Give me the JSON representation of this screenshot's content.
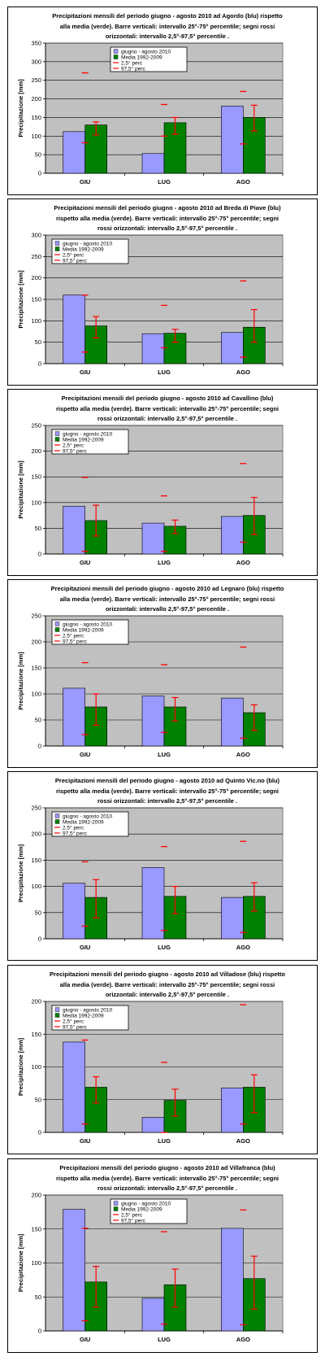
{
  "chart_data": [
    {
      "type": "bar",
      "title": "Precipitazioni mensili del periodo giugno - agosto 2010 ad Agordo (blu) rispetto alla media (verde). Barre verticali: intervallo 25°-75° percentile; segni rossi orizzontali: intervallo 2,5°-97,5° percentile .",
      "title_lines": [
        "Precipitazioni mensili del periodo giugno - agosto 2010 ad Agordo (blu) rispetto",
        "alla media (verde). Barre verticali: intervallo 25°-75° percentile; segni rossi",
        "orizzontali: intervallo 2,5°-97,5° percentile ."
      ],
      "ylabel": "Precipitazione [mm]",
      "ylim": [
        0,
        350
      ],
      "ytick_step": 50,
      "categories": [
        "GIU",
        "LUG",
        "AGO"
      ],
      "series": [
        {
          "name": "giugno - agosto 2010",
          "values": [
            112,
            53,
            181
          ],
          "color": "#9999ff"
        },
        {
          "name": "Media 1992-2009",
          "values": [
            130,
            136,
            150
          ],
          "color": "#008000"
        }
      ],
      "p25": [
        103,
        105,
        114
      ],
      "p75": [
        138,
        150,
        183
      ],
      "p2_5": [
        82,
        100,
        79
      ],
      "p97_5": [
        270,
        185,
        220
      ],
      "legend": [
        "giugno - agosto 2010",
        "Media 1992-2009",
        "2,5° perc",
        "97,5° perc"
      ],
      "legend_placement": "top-center"
    },
    {
      "type": "bar",
      "title": "Precipitazioni mensili del periodo giugno - agosto 2010 ad Breda di Piave (blu) rispetto alla media (verde). Barre verticali: intervallo 25°-75° percentile; segni rossi orizzontali: intervallo 2,5°-97,5° percentile .",
      "title_lines": [
        "Precipitazioni mensili del periodo giugno - agosto 2010 ad Breda di Piave (blu)",
        "rispetto alla media (verde). Barre verticali: intervallo 25°-75° percentile; segni",
        "rossi orizzontali: intervallo 2,5°-97,5° percentile ."
      ],
      "ylabel": "Precipitazione [mm]",
      "ylim": [
        0,
        300
      ],
      "ytick_step": 50,
      "categories": [
        "GIU",
        "LUG",
        "AGO"
      ],
      "series": [
        {
          "name": "giugno - agosto 2010",
          "values": [
            160,
            70,
            73
          ],
          "color": "#9999ff"
        },
        {
          "name": "Media 1992-2009",
          "values": [
            88,
            71,
            85
          ],
          "color": "#008000"
        }
      ],
      "p25": [
        60,
        50,
        50
      ],
      "p75": [
        110,
        80,
        126
      ],
      "p2_5": [
        27,
        37,
        15
      ],
      "p97_5": [
        160,
        136,
        193
      ],
      "legend": [
        "giugno - agosto 2010",
        "Media 1992-2009",
        "2,5° perc",
        "97,5° perc"
      ],
      "legend_placement": "top-left"
    },
    {
      "type": "bar",
      "title": "Precipitazioni mensili del periodo giugno - agosto 2010 ad Cavallino (blu) rispetto alla media (verde). Barre verticali: intervallo 25°-75° percentile; segni rossi orizzontali: intervallo 2,5°-97,5° percentile .",
      "title_lines": [
        "Precipitazioni mensili del periodo giugno - agosto 2010 ad Cavallino (blu)",
        "rispetto alla media (verde). Barre verticali: intervallo 25°-75° percentile; segni",
        "rossi orizzontali: intervallo 2,5°-97,5° percentile ."
      ],
      "ylabel": "Precipitazione [mm]",
      "ylim": [
        0,
        250
      ],
      "ytick_step": 50,
      "categories": [
        "GIU",
        "LUG",
        "AGO"
      ],
      "series": [
        {
          "name": "giugno - agosto 2010",
          "values": [
            93,
            60,
            73
          ],
          "color": "#9999ff"
        },
        {
          "name": "Media 1992-2009",
          "values": [
            65,
            54,
            75
          ],
          "color": "#008000"
        }
      ],
      "p25": [
        35,
        40,
        38
      ],
      "p75": [
        95,
        66,
        110
      ],
      "p2_5": [
        5,
        5,
        23
      ],
      "p97_5": [
        149,
        113,
        176
      ],
      "legend": [
        "giugno - agosto 2010",
        "Media 1992-2009",
        "2,5° perc",
        "97,5° perc"
      ],
      "legend_placement": "top-left"
    },
    {
      "type": "bar",
      "title": "Precipitazioni mensili del periodo giugno - agosto 2010 ad Legnaro (blu) rispetto alla media (verde). Barre verticali: intervallo 25°-75° percentile; segni rossi orizzontali: intervallo 2,5°-97,5° percentile .",
      "title_lines": [
        "Precipitazioni mensili del periodo giugno - agosto 2010 ad Legnaro (blu) rispetto",
        "alla media (verde). Barre verticali: intervallo 25°-75° percentile; segni rossi",
        "orizzontali: intervallo 2,5°-97,5° percentile ."
      ],
      "ylabel": "Precipitazione [mm]",
      "ylim": [
        0,
        250
      ],
      "ytick_step": 50,
      "categories": [
        "GIU",
        "LUG",
        "AGO"
      ],
      "series": [
        {
          "name": "giugno - agosto 2010",
          "values": [
            111,
            96,
            92
          ],
          "color": "#9999ff"
        },
        {
          "name": "Media 1992-2009",
          "values": [
            75,
            75,
            64
          ],
          "color": "#008000"
        }
      ],
      "p25": [
        40,
        48,
        30
      ],
      "p75": [
        100,
        93,
        79
      ],
      "p2_5": [
        22,
        26,
        15
      ],
      "p97_5": [
        160,
        156,
        190
      ],
      "legend": [
        "giugno - agosto 2010",
        "Media 1992-2009",
        "2,5° perc",
        "97,5° perc"
      ],
      "legend_placement": "top-left"
    },
    {
      "type": "bar",
      "title": "Precipitazioni mensili del periodo giugno - agosto 2010 ad Quinto Vic.no (blu) rispetto alla media (verde). Barre verticali: intervallo 25°-75° percentile; segni rossi orizzontali: intervallo 2,5°-97,5° percentile .",
      "title_lines": [
        "Precipitazioni mensili del periodo giugno - agosto 2010 ad Quinto Vic.no (blu)",
        "rispetto alla media (verde). Barre verticali: intervallo 25°-75° percentile; segni",
        "rossi orizzontali: intervallo 2,5°-97,5° percentile ."
      ],
      "ylabel": "Precipitazione [mm]",
      "ylim": [
        0,
        250
      ],
      "ytick_step": 50,
      "categories": [
        "GIU",
        "LUG",
        "AGO"
      ],
      "series": [
        {
          "name": "giugno - agosto 2010",
          "values": [
            106,
            136,
            79
          ],
          "color": "#9999ff"
        },
        {
          "name": "Media 1992-2009",
          "values": [
            79,
            81,
            81
          ],
          "color": "#008000"
        }
      ],
      "p25": [
        40,
        48,
        53
      ],
      "p75": [
        113,
        100,
        107
      ],
      "p2_5": [
        24,
        16,
        12
      ],
      "p97_5": [
        147,
        176,
        186
      ],
      "legend": [
        "giugno - agosto 2010",
        "Media 1992-2009",
        "2,5° perc",
        "97,5° perc"
      ],
      "legend_placement": "top-left"
    },
    {
      "type": "bar",
      "title": "Precipitazioni mensili del periodo giugno - agosto 2010 ad Villadose (blu) rispetto alla media (verde). Barre verticali: intervallo 25°-75° percentile; segni rossi orizzontali: intervallo 2,5°-97,5° percentile .",
      "title_lines": [
        "Precipitazioni mensili del periodo giugno - agosto 2010 ad Villadose (blu) rispetto",
        "alla media (verde). Barre verticali: intervallo 25°-75° percentile; segni rossi",
        "orizzontali: intervallo 2,5°-97,5° percentile ."
      ],
      "ylabel": "Precipitazione [mm]",
      "ylim": [
        0,
        200
      ],
      "ytick_step": 50,
      "categories": [
        "GIU",
        "LUG",
        "AGO"
      ],
      "series": [
        {
          "name": "giugno - agosto 2010",
          "values": [
            138,
            23,
            68
          ],
          "color": "#9999ff"
        },
        {
          "name": "Media 1992-2009",
          "values": [
            69,
            49,
            69
          ],
          "color": "#008000"
        }
      ],
      "p25": [
        45,
        25,
        30
      ],
      "p75": [
        85,
        66,
        88
      ],
      "p2_5": [
        13,
        0,
        13
      ],
      "p97_5": [
        141,
        107,
        195
      ],
      "legend": [
        "giugno - agosto 2010",
        "Media 1992-2009",
        "2,5° perc",
        "97,5° perc"
      ],
      "legend_placement": "top-left"
    },
    {
      "type": "bar",
      "title": "Precipitazioni mensili del periodo giugno - agosto 2010 ad Villafranca (blu) rispetto alla media (verde). Barre verticali: intervallo 25°-75° percentile; segni rossi orizzontali: intervallo 2,5°-97,5° percentile .",
      "title_lines": [
        "Precipitazioni mensili del periodo giugno - agosto 2010 ad Villafranca (blu)",
        "rispetto alla media (verde). Barre verticali: intervallo 25°-75° percentile; segni",
        "rossi orizzontali: intervallo 2,5°-97,5° percentile ."
      ],
      "ylabel": "Precipitazione [mm]",
      "ylim": [
        0,
        200
      ],
      "ytick_step": 50,
      "categories": [
        "GIU",
        "LUG",
        "AGO"
      ],
      "series": [
        {
          "name": "giugno - agosto 2010",
          "values": [
            179,
            48,
            151
          ],
          "color": "#9999ff"
        },
        {
          "name": "Media 1992-2009",
          "values": [
            72,
            68,
            77
          ],
          "color": "#008000"
        }
      ],
      "p25": [
        35,
        35,
        32
      ],
      "p75": [
        95,
        91,
        110
      ],
      "p2_5": [
        15,
        10,
        9
      ],
      "p97_5": [
        151,
        146,
        178
      ],
      "legend": [
        "giugno - agosto 2010",
        "Media 1992-2009",
        "2,5° perc",
        "97,5° perc"
      ],
      "legend_placement": "top-center"
    }
  ]
}
